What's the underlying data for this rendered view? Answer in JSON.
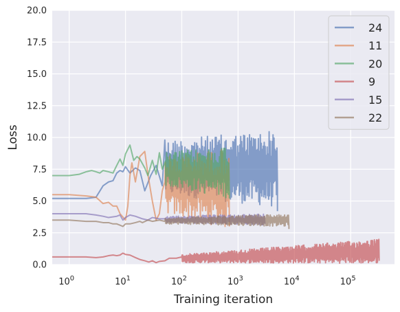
{
  "chart_data": {
    "type": "line",
    "title": "",
    "xlabel": "Training iteration",
    "ylabel": "Loss",
    "xscale": "log",
    "xlim": [
      0.5,
      600000
    ],
    "ylim": [
      0,
      20
    ],
    "grid": true,
    "legend_position": "top-right",
    "background": "#eaeaf2",
    "x_ticks": [
      {
        "value": 1,
        "base": "10",
        "exp": "0"
      },
      {
        "value": 10,
        "base": "10",
        "exp": "1"
      },
      {
        "value": 100,
        "base": "10",
        "exp": "2"
      },
      {
        "value": 1000,
        "base": "10",
        "exp": "3"
      },
      {
        "value": 10000,
        "base": "10",
        "exp": "4"
      },
      {
        "value": 100000,
        "base": "10",
        "exp": "5"
      }
    ],
    "y_ticks": [
      {
        "value": 0,
        "label": "0.0"
      },
      {
        "value": 2.5,
        "label": "2.5"
      },
      {
        "value": 5,
        "label": "5.0"
      },
      {
        "value": 7.5,
        "label": "7.5"
      },
      {
        "value": 10,
        "label": "10.0"
      },
      {
        "value": 12.5,
        "label": "12.5"
      },
      {
        "value": 15,
        "label": "15.0"
      },
      {
        "value": 17.5,
        "label": "17.5"
      },
      {
        "value": 20,
        "label": "20.0"
      }
    ],
    "series": [
      {
        "name": "24",
        "color": "#4c72b0",
        "smooth": [
          [
            0.5,
            5.2
          ],
          [
            1,
            5.2
          ],
          [
            2,
            5.2
          ],
          [
            3,
            5.3
          ],
          [
            4,
            6.2
          ],
          [
            5,
            6.5
          ],
          [
            6,
            6.6
          ],
          [
            7,
            7.2
          ],
          [
            8,
            7.4
          ],
          [
            9,
            7.3
          ],
          [
            10,
            7.7
          ],
          [
            12,
            7.2
          ],
          [
            15,
            7.6
          ],
          [
            18,
            7.4
          ],
          [
            22,
            5.8
          ],
          [
            28,
            7.0
          ],
          [
            35,
            7.8
          ],
          [
            45,
            6.2
          ],
          [
            50,
            9.8
          ]
        ],
        "noise": {
          "from": 50,
          "to": 5000,
          "low": [
            5.5,
            4.5
          ],
          "high": [
            9.8,
            10.6
          ],
          "n": 230,
          "end_drop": 4.2
        }
      },
      {
        "name": "11",
        "color": "#dd8452",
        "smooth": [
          [
            0.5,
            5.5
          ],
          [
            1,
            5.5
          ],
          [
            2,
            5.4
          ],
          [
            3,
            5.3
          ],
          [
            4,
            4.8
          ],
          [
            5,
            4.9
          ],
          [
            6,
            4.6
          ],
          [
            7,
            4.6
          ],
          [
            8,
            4.0
          ],
          [
            10,
            3.5
          ],
          [
            11,
            4.6
          ],
          [
            12,
            7.0
          ],
          [
            13,
            8.0
          ],
          [
            15,
            6.5
          ],
          [
            18,
            8.5
          ],
          [
            22,
            8.9
          ],
          [
            25,
            7.1
          ],
          [
            30,
            5.0
          ],
          [
            35,
            3.5
          ],
          [
            40,
            4.0
          ],
          [
            45,
            5.8
          ],
          [
            50,
            6.5
          ]
        ],
        "noise": {
          "from": 50,
          "to": 700,
          "low": [
            4.0,
            2.8
          ],
          "high": [
            8.5,
            9.2
          ],
          "n": 120,
          "end_drop": 3.0
        }
      },
      {
        "name": "20",
        "color": "#55a868",
        "smooth": [
          [
            0.5,
            7.0
          ],
          [
            1,
            7.0
          ],
          [
            1.5,
            7.1
          ],
          [
            2,
            7.3
          ],
          [
            2.5,
            7.4
          ],
          [
            3,
            7.3
          ],
          [
            3.5,
            7.2
          ],
          [
            4,
            7.4
          ],
          [
            5,
            7.3
          ],
          [
            6,
            7.2
          ],
          [
            7,
            7.8
          ],
          [
            8,
            8.3
          ],
          [
            9,
            7.8
          ],
          [
            10,
            8.7
          ],
          [
            12,
            9.4
          ],
          [
            14,
            8.2
          ],
          [
            16,
            8.5
          ],
          [
            18,
            8.3
          ],
          [
            22,
            7.6
          ],
          [
            25,
            7.0
          ],
          [
            30,
            8.2
          ],
          [
            35,
            7.1
          ],
          [
            40,
            8.8
          ],
          [
            45,
            7.5
          ],
          [
            50,
            8.0
          ]
        ],
        "noise": {
          "from": 50,
          "to": 700,
          "low": [
            6.2,
            5.2
          ],
          "high": [
            8.8,
            9.4
          ],
          "n": 110,
          "end_drop": 5.2
        }
      },
      {
        "name": "9",
        "color": "#c44e52",
        "smooth": [
          [
            0.5,
            0.6
          ],
          [
            1,
            0.6
          ],
          [
            2,
            0.6
          ],
          [
            3,
            0.55
          ],
          [
            4,
            0.6
          ],
          [
            5,
            0.7
          ],
          [
            6,
            0.75
          ],
          [
            7,
            0.7
          ],
          [
            8,
            0.75
          ],
          [
            9,
            0.9
          ],
          [
            10,
            0.8
          ],
          [
            12,
            0.75
          ],
          [
            15,
            0.55
          ],
          [
            18,
            0.4
          ],
          [
            22,
            0.3
          ],
          [
            26,
            0.2
          ],
          [
            30,
            0.3
          ],
          [
            35,
            0.15
          ],
          [
            40,
            0.25
          ],
          [
            50,
            0.3
          ],
          [
            60,
            0.5
          ],
          [
            80,
            0.5
          ],
          [
            100,
            0.6
          ]
        ],
        "noise": {
          "from": 100,
          "to": 320000,
          "low": [
            0.15,
            0.1
          ],
          "high": [
            0.8,
            2.0
          ],
          "n": 700,
          "end_drop": 0.3
        }
      },
      {
        "name": "15",
        "color": "#8172b3",
        "smooth": [
          [
            0.5,
            4.0
          ],
          [
            1,
            4.0
          ],
          [
            2,
            4.0
          ],
          [
            3,
            3.9
          ],
          [
            4,
            3.8
          ],
          [
            5,
            3.7
          ],
          [
            7,
            3.8
          ],
          [
            8,
            3.9
          ],
          [
            9,
            3.5
          ],
          [
            10,
            3.7
          ],
          [
            12,
            3.9
          ],
          [
            15,
            3.8
          ],
          [
            20,
            3.6
          ],
          [
            25,
            3.5
          ],
          [
            30,
            3.7
          ],
          [
            40,
            3.6
          ],
          [
            50,
            3.6
          ]
        ],
        "noise": {
          "from": 50,
          "to": 3000,
          "low": [
            3.3,
            3.1
          ],
          "high": [
            3.8,
            4.0
          ],
          "n": 200,
          "end_drop": 3.2
        }
      },
      {
        "name": "22",
        "color": "#937860",
        "smooth": [
          [
            0.5,
            3.5
          ],
          [
            1,
            3.5
          ],
          [
            2,
            3.4
          ],
          [
            3,
            3.4
          ],
          [
            4,
            3.3
          ],
          [
            5,
            3.3
          ],
          [
            6,
            3.2
          ],
          [
            7,
            3.2
          ],
          [
            8,
            3.1
          ],
          [
            9,
            3.0
          ],
          [
            10,
            3.2
          ],
          [
            12,
            3.2
          ],
          [
            15,
            3.3
          ],
          [
            18,
            3.4
          ],
          [
            20,
            3.3
          ],
          [
            25,
            3.5
          ],
          [
            30,
            3.4
          ],
          [
            40,
            3.5
          ],
          [
            50,
            3.4
          ]
        ],
        "noise": {
          "from": 50,
          "to": 8000,
          "low": [
            3.2,
            3.0
          ],
          "high": [
            3.7,
            4.0
          ],
          "n": 260,
          "end_drop": 2.8
        }
      }
    ]
  }
}
